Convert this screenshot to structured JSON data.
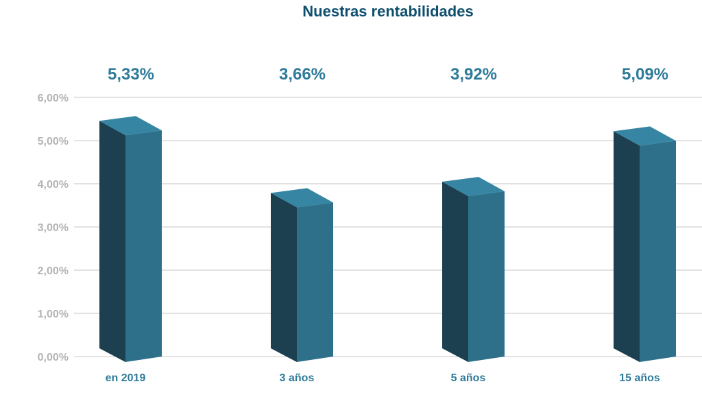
{
  "chart_data": {
    "type": "bar",
    "title": "Nuestras rentabilidades",
    "categories": [
      "en 2019",
      "3 años",
      "5 años",
      "15 años"
    ],
    "values": [
      5.33,
      3.66,
      3.92,
      5.09
    ],
    "value_labels": [
      "5,33%",
      "3,66%",
      "3,92%",
      "5,09%"
    ],
    "yticks": [
      0,
      1,
      2,
      3,
      4,
      5,
      6
    ],
    "ytick_labels": [
      "0,00%",
      "1,00%",
      "2,00%",
      "3,00%",
      "4,00%",
      "5,00%",
      "6,00%"
    ],
    "ylim": [
      0,
      6
    ],
    "grid": true,
    "style": "3d-column",
    "xlabel": "",
    "ylabel": ""
  },
  "colors": {
    "title": "#0f4f6e",
    "value_label": "#2e7b9a",
    "category_label": "#2e7b9a",
    "tick_label": "#b4b4b4",
    "grid": "#d9d9d9",
    "bar_front": "#2e7089",
    "bar_side": "#1d4050",
    "bar_top": "#3585a3"
  }
}
